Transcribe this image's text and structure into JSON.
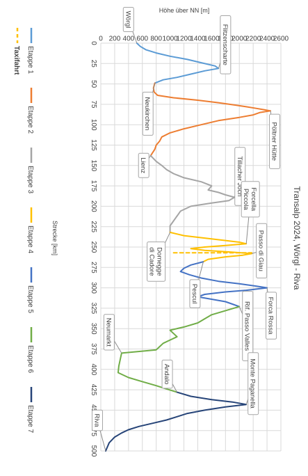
{
  "chart_data": {
    "type": "line",
    "title": "Transalp 2024, Wörgl - Riva",
    "xlabel": "Strecke [km]",
    "ylabel": "Höhe über NN [m]",
    "xlim": [
      0,
      500
    ],
    "ylim": [
      0,
      2600
    ],
    "x_ticks": [
      "0",
      "25",
      "50",
      "75",
      "100",
      "125",
      "150",
      "175",
      "200",
      "225",
      "250",
      "275",
      "300",
      "325",
      "350",
      "375",
      "400",
      "425",
      "450",
      "475",
      "500"
    ],
    "y_ticks": [
      "0",
      "200",
      "400",
      "600",
      "800",
      "1000",
      "1200",
      "1400",
      "1600",
      "1800",
      "2000",
      "2200",
      "2400",
      "2600"
    ],
    "grid": true,
    "orientation": "rotated-90-clockwise",
    "legend_position": "left",
    "series": [
      {
        "name": "Etappe 1",
        "color": "#5b9bd5",
        "dashed": false,
        "points": [
          [
            0,
            520
          ],
          [
            4,
            570
          ],
          [
            8,
            650
          ],
          [
            12,
            800
          ],
          [
            16,
            1000
          ],
          [
            20,
            1250
          ],
          [
            24,
            1450
          ],
          [
            28,
            1650
          ],
          [
            31,
            1700
          ],
          [
            34,
            1500
          ],
          [
            38,
            1300
          ],
          [
            42,
            1100
          ],
          [
            45,
            900
          ],
          [
            49,
            780
          ]
        ]
      },
      {
        "name": "Etappe 2",
        "color": "#ed7d31",
        "dashed": false,
        "points": [
          [
            49,
            780
          ],
          [
            55,
            760
          ],
          [
            60,
            770
          ],
          [
            64,
            820
          ],
          [
            67,
            1050
          ],
          [
            70,
            1400
          ],
          [
            73,
            1700
          ],
          [
            76,
            1950
          ],
          [
            78,
            2100
          ],
          [
            80,
            2250
          ],
          [
            83,
            2450
          ],
          [
            85,
            2300
          ],
          [
            88,
            2200
          ],
          [
            91,
            2000
          ],
          [
            95,
            1700
          ],
          [
            100,
            1450
          ],
          [
            105,
            1200
          ],
          [
            110,
            1000
          ],
          [
            115,
            880
          ],
          [
            120,
            850
          ],
          [
            125,
            800
          ],
          [
            130,
            780
          ],
          [
            138,
            720
          ]
        ]
      },
      {
        "name": "Etappe 3",
        "color": "#a5a5a5",
        "dashed": false,
        "points": [
          [
            138,
            720
          ],
          [
            145,
            800
          ],
          [
            150,
            880
          ],
          [
            155,
            950
          ],
          [
            160,
            1050
          ],
          [
            165,
            1200
          ],
          [
            170,
            1450
          ],
          [
            175,
            1600
          ],
          [
            180,
            1550
          ],
          [
            183,
            1700
          ],
          [
            186,
            1800
          ],
          [
            189,
            1930
          ],
          [
            193,
            1850
          ],
          [
            196,
            1600
          ],
          [
            200,
            1300
          ],
          [
            206,
            1150
          ],
          [
            212,
            1100
          ],
          [
            218,
            1050
          ],
          [
            224,
            1000
          ],
          [
            232,
            1000
          ]
        ]
      },
      {
        "name": "Etappe 4",
        "color": "#ffc000",
        "dashed": false,
        "points": [
          [
            232,
            1000
          ],
          [
            236,
            1200
          ],
          [
            239,
            1500
          ],
          [
            242,
            1800
          ],
          [
            244,
            2000
          ],
          [
            246,
            2100
          ],
          [
            248,
            1800
          ],
          [
            250,
            1500
          ],
          [
            252,
            1300
          ],
          [
            254,
            1500
          ],
          [
            256,
            1850
          ],
          [
            258,
            2180
          ],
          [
            260,
            2050
          ],
          [
            262,
            1800
          ],
          [
            265,
            1550
          ],
          [
            268,
            1480
          ]
        ]
      },
      {
        "name": "Taxifahrt",
        "color": "#ffc000",
        "dashed": true,
        "points": [
          [
            257,
            1050
          ],
          [
            257,
            2180
          ]
        ]
      },
      {
        "name": "Etappe 5",
        "color": "#4472c4",
        "dashed": false,
        "points": [
          [
            268,
            1480
          ],
          [
            272,
            1300
          ],
          [
            276,
            1200
          ],
          [
            280,
            1150
          ],
          [
            284,
            1280
          ],
          [
            288,
            1450
          ],
          [
            292,
            1700
          ],
          [
            295,
            2000
          ],
          [
            298,
            2250
          ],
          [
            300,
            2400
          ],
          [
            303,
            2100
          ],
          [
            305,
            1800
          ],
          [
            308,
            1500
          ],
          [
            311,
            1400
          ],
          [
            314,
            1600
          ],
          [
            317,
            1800
          ],
          [
            320,
            1900
          ],
          [
            323,
            2000
          ]
        ]
      },
      {
        "name": "Etappe 6",
        "color": "#70ad47",
        "dashed": false,
        "points": [
          [
            323,
            2000
          ],
          [
            328,
            1800
          ],
          [
            333,
            1600
          ],
          [
            338,
            1500
          ],
          [
            343,
            1400
          ],
          [
            348,
            1200
          ],
          [
            352,
            1000
          ],
          [
            356,
            1050
          ],
          [
            360,
            1100
          ],
          [
            364,
            1000
          ],
          [
            368,
            900
          ],
          [
            372,
            850
          ],
          [
            376,
            800
          ],
          [
            380,
            300
          ],
          [
            388,
            280
          ],
          [
            396,
            260
          ],
          [
            404,
            250
          ],
          [
            410,
            400
          ],
          [
            415,
            600
          ],
          [
            420,
            800
          ],
          [
            424,
            950
          ],
          [
            428,
            1100
          ]
        ]
      },
      {
        "name": "Etappe 7",
        "color": "#264478",
        "dashed": false,
        "points": [
          [
            428,
            1100
          ],
          [
            433,
            1300
          ],
          [
            437,
            1600
          ],
          [
            440,
            1900
          ],
          [
            443,
            2100
          ],
          [
            446,
            1800
          ],
          [
            450,
            1500
          ],
          [
            454,
            1250
          ],
          [
            458,
            1100
          ],
          [
            462,
            950
          ],
          [
            466,
            750
          ],
          [
            470,
            550
          ],
          [
            474,
            400
          ],
          [
            478,
            300
          ],
          [
            483,
            200
          ],
          [
            490,
            120
          ],
          [
            500,
            70
          ]
        ]
      }
    ],
    "annotations": [
      {
        "lines": [
          "Wörgl"
        ],
        "x": 0,
        "y": 520
      },
      {
        "lines": [
          "Flitzenscharte"
        ],
        "x": 31,
        "y": 1700
      },
      {
        "lines": [
          "Neukirchen"
        ],
        "x": 49,
        "y": 780
      },
      {
        "lines": [
          "Pöltner Hütte"
        ],
        "x": 83,
        "y": 2450
      },
      {
        "lines": [
          "Lienz"
        ],
        "x": 138,
        "y": 720
      },
      {
        "lines": [
          "Tillacher Joch"
        ],
        "x": 189,
        "y": 1930
      },
      {
        "lines": [
          "Domegge",
          "di Cadore"
        ],
        "x": 232,
        "y": 1000
      },
      {
        "lines": [
          "Forcella",
          "Piccola"
        ],
        "x": 246,
        "y": 2100
      },
      {
        "lines": [
          "Passo di Giau"
        ],
        "x": 258,
        "y": 2180
      },
      {
        "lines": [
          "Pescul"
        ],
        "x": 268,
        "y": 1480
      },
      {
        "lines": [
          "Forca Rossa"
        ],
        "x": 300,
        "y": 2400
      },
      {
        "lines": [
          "Rif. Passo Valles"
        ],
        "x": 323,
        "y": 2000
      },
      {
        "lines": [
          "Neumarkt"
        ],
        "x": 380,
        "y": 300
      },
      {
        "lines": [
          "Andalo"
        ],
        "x": 428,
        "y": 1100
      },
      {
        "lines": [
          "Monte Paganella"
        ],
        "x": 443,
        "y": 2100
      },
      {
        "lines": [
          "Riva"
        ],
        "x": 500,
        "y": 70
      }
    ]
  }
}
